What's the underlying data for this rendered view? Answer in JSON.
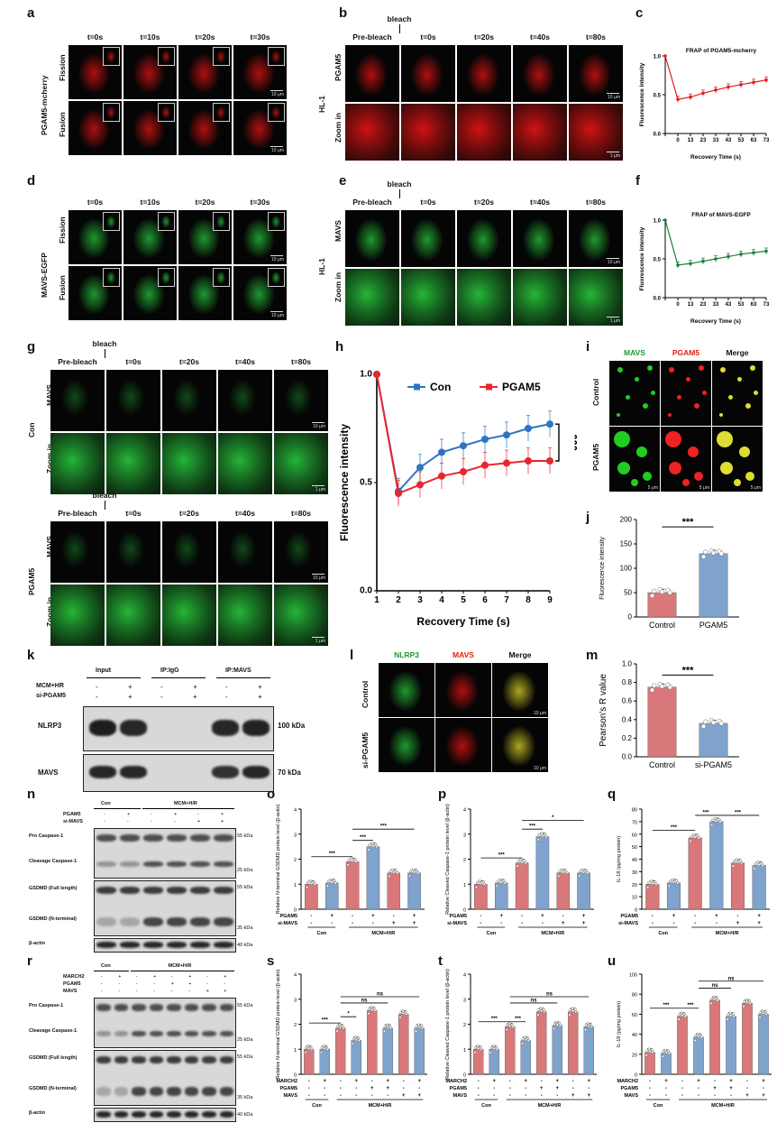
{
  "panels": {
    "a": {
      "letter": "a",
      "row_label": "PGAM5-mcherry",
      "rows": [
        "Fission",
        "Fusion"
      ],
      "times": [
        "t=0s",
        "t=10s",
        "t=20s",
        "t=30s"
      ],
      "scale": "10 μm"
    },
    "b": {
      "letter": "b",
      "cell": "HL-1",
      "rows": [
        "PGAM5",
        "Zoom in"
      ],
      "times": [
        "Pre-bleach",
        "t=0s",
        "t=20s",
        "t=40s",
        "t=80s"
      ],
      "bleach": "bleach",
      "scale": "10 μm",
      "scale2": "1 μm"
    },
    "c": {
      "letter": "c"
    },
    "d": {
      "letter": "d",
      "row_label": "MAVS-EGFP",
      "rows": [
        "Fission",
        "Fusion"
      ],
      "times": [
        "t=0s",
        "t=10s",
        "t=20s",
        "t=30s"
      ],
      "scale": "10 μm"
    },
    "e": {
      "letter": "e",
      "cell": "HL-1",
      "rows": [
        "MAVS",
        "Zoom in"
      ],
      "times": [
        "Pre-bleach",
        "t=0s",
        "t=20s",
        "t=40s",
        "t=80s"
      ],
      "bleach": "bleach",
      "scale": "10 μm",
      "scale2": "1 μm"
    },
    "f": {
      "letter": "f"
    },
    "g": {
      "letter": "g",
      "groups": [
        "Con",
        "PGAM5"
      ],
      "rows": [
        "MAVS",
        "Zoom in"
      ],
      "times": [
        "Pre-bleach",
        "t=0s",
        "t=20s",
        "t=40s",
        "t=80s"
      ],
      "bleach": "bleach",
      "scale": "10 μm",
      "scale2": "1 μm"
    },
    "h": {
      "letter": "h"
    },
    "i": {
      "letter": "i",
      "cols": [
        "MAVS",
        "PGAM5",
        "Merge"
      ],
      "rows": [
        "Control",
        "PGAM5"
      ],
      "scale": "5 μm"
    },
    "j": {
      "letter": "j"
    },
    "k": {
      "letter": "k",
      "groups": [
        "Input",
        "IP:IgG",
        "IP:MAVS"
      ],
      "rowlabels": [
        "MCM+HR",
        "si-PGAM5"
      ],
      "signs": [
        "-",
        "+",
        "-",
        "+",
        "-",
        "+"
      ],
      "signs2": [
        "-",
        "+",
        "-",
        "+",
        "-",
        "+"
      ],
      "bands": [
        "NLRP3",
        "MAVS"
      ],
      "kda": [
        "100 kDa",
        "70 kDa"
      ]
    },
    "l": {
      "letter": "l",
      "cols": [
        "NLRP3",
        "MAVS",
        "Merge"
      ],
      "rows": [
        "Control",
        "si-PGAM5"
      ],
      "scale": "10 μm"
    },
    "m": {
      "letter": "m"
    },
    "n": {
      "letter": "n",
      "headers": [
        "Con",
        "MCM+H/R"
      ],
      "rowlabels": [
        "PGAM5",
        "si-MAVS"
      ],
      "signs1": [
        "-",
        "+",
        "-",
        "+",
        "-",
        "+"
      ],
      "signs2": [
        "-",
        "-",
        "-",
        "-",
        "+",
        "+"
      ],
      "bands": [
        "Pro Caspase-1",
        "Cleavage Caspase-1",
        "GSDMD (Full length)",
        "GSDMD (N-terminal)",
        "β-actin"
      ],
      "kda": [
        "55 kDa",
        "25 kDa",
        "55 kDa",
        "35 kDa",
        "40 kDa"
      ]
    },
    "r": {
      "letter": "r",
      "headers": [
        "Con",
        "MCM+H/R"
      ],
      "rowlabels": [
        "MARCH2",
        "PGAM5",
        "MAVS"
      ],
      "signs1": [
        "-",
        "+",
        "-",
        "+",
        "-",
        "+",
        "-",
        "+"
      ],
      "signs2": [
        "-",
        "-",
        "-",
        "-",
        "+",
        "+",
        "-",
        "-"
      ],
      "signs3": [
        "-",
        "-",
        "-",
        "-",
        "-",
        "-",
        "+",
        "+"
      ],
      "bands": [
        "Pro Caspase-1",
        "Cleavage Caspase-1",
        "GSDMD (Full length)",
        "GSDMD (N-terminal)",
        "β-actin"
      ],
      "kda": [
        "55 kDa",
        "25 kDa",
        "55 kDa",
        "35 kDa",
        "40 kDa"
      ]
    },
    "o": {
      "letter": "o"
    },
    "p": {
      "letter": "p"
    },
    "q": {
      "letter": "q"
    },
    "s": {
      "letter": "s"
    },
    "t": {
      "letter": "t"
    },
    "u": {
      "letter": "u"
    }
  },
  "chart_data": [
    {
      "id": "c",
      "type": "line",
      "title": "FRAP of PGAM5-mcherry",
      "xlabel": "Recovery Time (s)",
      "ylabel": "Fluorescence intensity",
      "x": [
        "",
        "0",
        "13",
        "23",
        "33",
        "43",
        "53",
        "63",
        "73"
      ],
      "ylim": [
        0.0,
        1.0
      ],
      "yticks": [
        "0.0",
        "0.5",
        "1.0"
      ],
      "series": [
        {
          "values": [
            1.0,
            0.44,
            0.47,
            0.52,
            0.56,
            0.6,
            0.63,
            0.66,
            0.69
          ],
          "color": "#e31a1c"
        }
      ]
    },
    {
      "id": "f",
      "type": "line",
      "title": "FRAP of MAVS-EGFP",
      "xlabel": "Recovery Time (s)",
      "ylabel": "Fluorescence intensity",
      "x": [
        "",
        "0",
        "13",
        "23",
        "33",
        "43",
        "53",
        "63",
        "73"
      ],
      "ylim": [
        0.0,
        1.0
      ],
      "yticks": [
        "0.0",
        "0.5",
        "1.0"
      ],
      "series": [
        {
          "values": [
            1.0,
            0.42,
            0.44,
            0.47,
            0.5,
            0.53,
            0.56,
            0.58,
            0.6
          ],
          "color": "#1a7f3c"
        }
      ]
    },
    {
      "id": "h",
      "type": "line",
      "xlabel": "Recovery Time (s)",
      "ylabel": "Fluorescence intensity",
      "x": [
        "1",
        "2",
        "3",
        "4",
        "5",
        "6",
        "7",
        "8",
        "9"
      ],
      "ylim": [
        0.0,
        1.0
      ],
      "yticks": [
        "0.0",
        "0.5",
        "1.0"
      ],
      "legend": "top",
      "annotation": "***",
      "series": [
        {
          "name": "Con",
          "values": [
            1.0,
            0.46,
            0.57,
            0.64,
            0.67,
            0.7,
            0.72,
            0.75,
            0.77
          ],
          "color": "#2f74c0"
        },
        {
          "name": "PGAM5",
          "values": [
            1.0,
            0.45,
            0.49,
            0.53,
            0.55,
            0.58,
            0.59,
            0.6,
            0.6
          ],
          "color": "#e8262e"
        }
      ]
    },
    {
      "id": "j",
      "type": "bar",
      "ylabel": "Fluorescence intensity",
      "categories": [
        "Control",
        "PGAM5"
      ],
      "values": [
        50,
        130
      ],
      "ylim": [
        0,
        200
      ],
      "yticks": [
        "0",
        "50",
        "100",
        "150",
        "200"
      ],
      "annotation": "***",
      "colors": [
        "#d9787a",
        "#7fa3cc"
      ]
    },
    {
      "id": "m",
      "type": "bar",
      "ylabel": "Pearson's R value",
      "categories": [
        "Control",
        "si-PGAM5"
      ],
      "values": [
        0.75,
        0.36
      ],
      "ylim": [
        0.0,
        1.0
      ],
      "yticks": [
        "0.0",
        "0.2",
        "0.4",
        "0.6",
        "0.8",
        "1.0"
      ],
      "annotation": "***",
      "colors": [
        "#d9787a",
        "#7fa3cc"
      ]
    },
    {
      "id": "o",
      "type": "bar",
      "ylabel": "Relative N-terminal GSDMD protein level (β-actin)",
      "values": [
        1.0,
        1.05,
        1.9,
        2.5,
        1.45,
        1.45
      ],
      "ylim": [
        0,
        4
      ],
      "yticks": [
        "0",
        "1",
        "2",
        "3",
        "4"
      ],
      "rows": [
        "PGAM5",
        "si-MAVS"
      ],
      "signs1": [
        "-",
        "+",
        "-",
        "+",
        "-",
        "+"
      ],
      "signs2": [
        "-",
        "-",
        "-",
        "-",
        "+",
        "+"
      ],
      "groups": [
        "Con",
        "MCM+H/R"
      ],
      "sig": [
        "***",
        "***",
        "***"
      ]
    },
    {
      "id": "p",
      "type": "bar",
      "ylabel": "Relative Cleaved Caspase-1 protein level (β-actin)",
      "values": [
        1.0,
        1.05,
        1.85,
        2.9,
        1.45,
        1.45
      ],
      "ylim": [
        0,
        4
      ],
      "yticks": [
        "0",
        "1",
        "2",
        "3",
        "4"
      ],
      "rows": [
        "PGAM5",
        "si-MAVS"
      ],
      "signs1": [
        "-",
        "+",
        "-",
        "+",
        "-",
        "+"
      ],
      "signs2": [
        "-",
        "-",
        "-",
        "-",
        "+",
        "+"
      ],
      "groups": [
        "Con",
        "MCM+H/R"
      ],
      "sig": [
        "***",
        "***",
        "*"
      ]
    },
    {
      "id": "q",
      "type": "bar",
      "ylabel": "IL-18 (pg/mg protein)",
      "values": [
        20,
        21,
        57,
        70,
        37,
        35
      ],
      "ylim": [
        0,
        80
      ],
      "yticks": [
        "0",
        "10",
        "20",
        "30",
        "40",
        "50",
        "60",
        "70",
        "80"
      ],
      "rows": [
        "PGAM5",
        "si-MAVS"
      ],
      "signs1": [
        "-",
        "+",
        "-",
        "+",
        "-",
        "+"
      ],
      "signs2": [
        "-",
        "-",
        "-",
        "-",
        "+",
        "+"
      ],
      "groups": [
        "Con",
        "MCM+H/R"
      ],
      "sig": [
        "***",
        "***",
        "***"
      ]
    },
    {
      "id": "s",
      "type": "bar",
      "ylabel": "Relative N-terminal GSDMD protein level (β-actin)",
      "values": [
        1.0,
        1.0,
        1.85,
        1.35,
        2.55,
        1.85,
        2.4,
        1.85
      ],
      "ylim": [
        0,
        4
      ],
      "yticks": [
        "0",
        "1",
        "2",
        "3",
        "4"
      ],
      "rows": [
        "MARCH2",
        "PGAM5",
        "MAVS"
      ],
      "signs1": [
        "-",
        "+",
        "-",
        "+",
        "-",
        "+",
        "-",
        "+"
      ],
      "signs2": [
        "-",
        "-",
        "-",
        "-",
        "+",
        "+",
        "-",
        "-"
      ],
      "signs3": [
        "-",
        "-",
        "-",
        "-",
        "-",
        "-",
        "+",
        "+"
      ],
      "groups": [
        "Con",
        "MCM+H/R"
      ],
      "sig": [
        "***",
        "*",
        "ns",
        "ns"
      ]
    },
    {
      "id": "t",
      "type": "bar",
      "ylabel": "Relative Cleaved Caspase-1 protein level (β-actin)",
      "values": [
        1.0,
        1.0,
        1.9,
        1.35,
        2.5,
        1.95,
        2.5,
        1.9
      ],
      "ylim": [
        0,
        4
      ],
      "yticks": [
        "0",
        "1",
        "2",
        "3",
        "4"
      ],
      "rows": [
        "MARCH2",
        "PGAM5",
        "MAVS"
      ],
      "signs1": [
        "-",
        "+",
        "-",
        "+",
        "-",
        "+",
        "-",
        "+"
      ],
      "signs2": [
        "-",
        "-",
        "-",
        "-",
        "+",
        "+",
        "-",
        "-"
      ],
      "signs3": [
        "-",
        "-",
        "-",
        "-",
        "-",
        "-",
        "+",
        "+"
      ],
      "groups": [
        "Con",
        "MCM+H/R"
      ],
      "sig": [
        "***",
        "***",
        "ns",
        "ns"
      ]
    },
    {
      "id": "u",
      "type": "bar",
      "ylabel": "IL-18 (pg/mg protein)",
      "values": [
        22,
        21,
        58,
        37,
        74,
        58,
        71,
        60
      ],
      "ylim": [
        0,
        100
      ],
      "yticks": [
        "0",
        "20",
        "40",
        "60",
        "80",
        "100"
      ],
      "rows": [
        "MARCH2",
        "PGAM5",
        "MAVS"
      ],
      "signs1": [
        "-",
        "+",
        "-",
        "+",
        "-",
        "+",
        "-",
        "+"
      ],
      "signs2": [
        "-",
        "-",
        "-",
        "-",
        "+",
        "+",
        "-",
        "-"
      ],
      "signs3": [
        "-",
        "-",
        "-",
        "-",
        "-",
        "-",
        "+",
        "+"
      ],
      "groups": [
        "Con",
        "MCM+H/R"
      ],
      "sig": [
        "***",
        "***",
        "ns",
        "ns"
      ]
    }
  ]
}
